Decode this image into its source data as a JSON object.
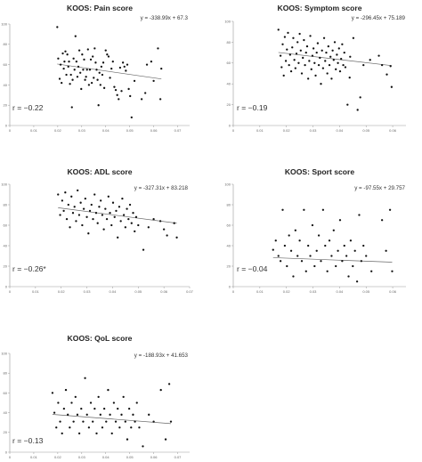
{
  "chart_data": [
    {
      "type": "scatter",
      "title": "KOOS: Pain score",
      "equation": "y = -338.99x + 67.3",
      "r_text": "r = −0.22",
      "slope": -338.99,
      "intercept": 67.3,
      "xlim": [
        0,
        0.075
      ],
      "ylim": [
        0,
        100
      ],
      "x_ticks": [
        "0",
        "0.01",
        "0.02",
        "0.03",
        "0.04",
        "0.05",
        "0.06",
        "0.07"
      ],
      "y_ticks": [
        "0",
        "20",
        "40",
        "60",
        "80",
        "100"
      ],
      "points": [
        [
          0.0198,
          97
        ],
        [
          0.0202,
          66
        ],
        [
          0.0208,
          46
        ],
        [
          0.0212,
          60
        ],
        [
          0.0216,
          42
        ],
        [
          0.0221,
          71
        ],
        [
          0.0225,
          56
        ],
        [
          0.0228,
          63
        ],
        [
          0.0232,
          73
        ],
        [
          0.0236,
          50
        ],
        [
          0.024,
          70
        ],
        [
          0.0244,
          58
        ],
        [
          0.0247,
          63
        ],
        [
          0.0251,
          41
        ],
        [
          0.0255,
          50
        ],
        [
          0.0259,
          18
        ],
        [
          0.0262,
          45
        ],
        [
          0.0266,
          66
        ],
        [
          0.027,
          55
        ],
        [
          0.0274,
          88
        ],
        [
          0.0278,
          63
        ],
        [
          0.0282,
          48
        ],
        [
          0.0286,
          58
        ],
        [
          0.029,
          74
        ],
        [
          0.0294,
          52
        ],
        [
          0.0298,
          36
        ],
        [
          0.0302,
          70
        ],
        [
          0.0306,
          55
        ],
        [
          0.031,
          65
        ],
        [
          0.0314,
          45
        ],
        [
          0.0318,
          48
        ],
        [
          0.0322,
          55
        ],
        [
          0.0326,
          75
        ],
        [
          0.033,
          40
        ],
        [
          0.0334,
          55
        ],
        [
          0.0338,
          65
        ],
        [
          0.0342,
          42
        ],
        [
          0.0346,
          68
        ],
        [
          0.035,
          47
        ],
        [
          0.0354,
          76
        ],
        [
          0.0358,
          62
        ],
        [
          0.0362,
          55
        ],
        [
          0.0366,
          45
        ],
        [
          0.037,
          20
        ],
        [
          0.0374,
          52
        ],
        [
          0.0378,
          40
        ],
        [
          0.0382,
          58
        ],
        [
          0.0386,
          50
        ],
        [
          0.039,
          62
        ],
        [
          0.0394,
          37
        ],
        [
          0.04,
          74
        ],
        [
          0.0406,
          70
        ],
        [
          0.0412,
          68
        ],
        [
          0.0418,
          47
        ],
        [
          0.0424,
          56
        ],
        [
          0.043,
          63
        ],
        [
          0.0436,
          38
        ],
        [
          0.0442,
          35
        ],
        [
          0.0448,
          30
        ],
        [
          0.0454,
          26
        ],
        [
          0.046,
          57
        ],
        [
          0.0466,
          34
        ],
        [
          0.0472,
          62
        ],
        [
          0.0478,
          58
        ],
        [
          0.0484,
          54
        ],
        [
          0.049,
          60
        ],
        [
          0.0496,
          36
        ],
        [
          0.0502,
          29
        ],
        [
          0.0508,
          8
        ],
        [
          0.052,
          44
        ],
        [
          0.055,
          26
        ],
        [
          0.0565,
          32
        ],
        [
          0.0572,
          60
        ],
        [
          0.059,
          63
        ],
        [
          0.06,
          44
        ],
        [
          0.0618,
          76
        ],
        [
          0.0628,
          26
        ],
        [
          0.0632,
          56
        ]
      ]
    },
    {
      "type": "scatter",
      "title": "KOOS: Symptom score",
      "equation": "y = -296.45x + 75.189",
      "r_text": "r = −0.19",
      "slope": -296.45,
      "intercept": 75.189,
      "xlim": [
        0,
        0.065
      ],
      "ylim": [
        0,
        100
      ],
      "x_ticks": [
        "0",
        "0.01",
        "0.02",
        "0.03",
        "0.04",
        "0.05",
        "0.06"
      ],
      "y_ticks": [
        "0",
        "20",
        "40",
        "60",
        "80",
        "100"
      ],
      "points": [
        [
          0.017,
          92
        ],
        [
          0.0178,
          67
        ],
        [
          0.0182,
          56
        ],
        [
          0.0186,
          78
        ],
        [
          0.019,
          48
        ],
        [
          0.0194,
          85
        ],
        [
          0.0198,
          62
        ],
        [
          0.0202,
          73
        ],
        [
          0.0206,
          89
        ],
        [
          0.021,
          58
        ],
        [
          0.0214,
          68
        ],
        [
          0.0218,
          52
        ],
        [
          0.0222,
          75
        ],
        [
          0.0226,
          84
        ],
        [
          0.023,
          63
        ],
        [
          0.0234,
          55
        ],
        [
          0.0238,
          69
        ],
        [
          0.0242,
          80
        ],
        [
          0.0246,
          60
        ],
        [
          0.025,
          88
        ],
        [
          0.0254,
          72
        ],
        [
          0.0258,
          50
        ],
        [
          0.0262,
          65
        ],
        [
          0.0266,
          82
        ],
        [
          0.027,
          58
        ],
        [
          0.0274,
          70
        ],
        [
          0.0278,
          76
        ],
        [
          0.0282,
          45
        ],
        [
          0.0286,
          62
        ],
        [
          0.029,
          86
        ],
        [
          0.0294,
          54
        ],
        [
          0.0298,
          67
        ],
        [
          0.0302,
          74
        ],
        [
          0.0306,
          60
        ],
        [
          0.031,
          48
        ],
        [
          0.0314,
          70
        ],
        [
          0.0318,
          79
        ],
        [
          0.0322,
          58
        ],
        [
          0.0326,
          65
        ],
        [
          0.033,
          40
        ],
        [
          0.0334,
          72
        ],
        [
          0.0338,
          55
        ],
        [
          0.0342,
          84
        ],
        [
          0.0346,
          62
        ],
        [
          0.035,
          70
        ],
        [
          0.0354,
          50
        ],
        [
          0.0358,
          76
        ],
        [
          0.0362,
          58
        ],
        [
          0.0366,
          66
        ],
        [
          0.037,
          45
        ],
        [
          0.0374,
          72
        ],
        [
          0.0378,
          63
        ],
        [
          0.0382,
          80
        ],
        [
          0.0386,
          54
        ],
        [
          0.039,
          68
        ],
        [
          0.0394,
          60
        ],
        [
          0.0398,
          74
        ],
        [
          0.0402,
          52
        ],
        [
          0.0406,
          64
        ],
        [
          0.041,
          78
        ],
        [
          0.0414,
          58
        ],
        [
          0.0418,
          70
        ],
        [
          0.0422,
          56
        ],
        [
          0.043,
          20
        ],
        [
          0.0438,
          46
        ],
        [
          0.044,
          66
        ],
        [
          0.0452,
          84
        ],
        [
          0.0468,
          15
        ],
        [
          0.0478,
          27
        ],
        [
          0.049,
          58
        ],
        [
          0.0515,
          63
        ],
        [
          0.0548,
          67
        ],
        [
          0.056,
          58
        ],
        [
          0.0578,
          49
        ],
        [
          0.0592,
          57
        ],
        [
          0.0596,
          37
        ]
      ]
    },
    {
      "type": "scatter",
      "title": "KOOS: ADL score",
      "equation": "y = -327.31x + 83.218",
      "r_text": "r = −0.26*",
      "slope": -327.31,
      "intercept": 83.218,
      "xlim": [
        0,
        0.07
      ],
      "ylim": [
        0,
        100
      ],
      "x_ticks": [
        "0",
        "0.01",
        "0.02",
        "0.03",
        "0.04",
        "0.05",
        "0.06",
        "0.07"
      ],
      "y_ticks": [
        "0",
        "20",
        "40",
        "60",
        "80",
        "100"
      ],
      "points": [
        [
          0.0188,
          90
        ],
        [
          0.0196,
          70
        ],
        [
          0.0204,
          84
        ],
        [
          0.021,
          74
        ],
        [
          0.0216,
          92
        ],
        [
          0.0222,
          66
        ],
        [
          0.0228,
          80
        ],
        [
          0.0234,
          58
        ],
        [
          0.024,
          88
        ],
        [
          0.0246,
          72
        ],
        [
          0.0252,
          78
        ],
        [
          0.0258,
          64
        ],
        [
          0.0264,
          94
        ],
        [
          0.027,
          70
        ],
        [
          0.0276,
          82
        ],
        [
          0.0282,
          60
        ],
        [
          0.0288,
          76
        ],
        [
          0.0294,
          86
        ],
        [
          0.03,
          68
        ],
        [
          0.0306,
          52
        ],
        [
          0.0312,
          74
        ],
        [
          0.0318,
          80
        ],
        [
          0.0324,
          66
        ],
        [
          0.033,
          90
        ],
        [
          0.0336,
          72
        ],
        [
          0.0342,
          62
        ],
        [
          0.0348,
          78
        ],
        [
          0.0354,
          84
        ],
        [
          0.036,
          70
        ],
        [
          0.0366,
          56
        ],
        [
          0.0372,
          76
        ],
        [
          0.0378,
          66
        ],
        [
          0.0384,
          88
        ],
        [
          0.039,
          72
        ],
        [
          0.0396,
          60
        ],
        [
          0.0402,
          82
        ],
        [
          0.0408,
          68
        ],
        [
          0.0414,
          74
        ],
        [
          0.042,
          48
        ],
        [
          0.0426,
          78
        ],
        [
          0.0432,
          64
        ],
        [
          0.0438,
          86
        ],
        [
          0.0444,
          70
        ],
        [
          0.045,
          58
        ],
        [
          0.0456,
          76
        ],
        [
          0.0462,
          66
        ],
        [
          0.0468,
          80
        ],
        [
          0.0474,
          62
        ],
        [
          0.048,
          72
        ],
        [
          0.0486,
          54
        ],
        [
          0.0492,
          68
        ],
        [
          0.05,
          60
        ],
        [
          0.052,
          36
        ],
        [
          0.054,
          58
        ],
        [
          0.056,
          66
        ],
        [
          0.0586,
          64
        ],
        [
          0.06,
          56
        ],
        [
          0.0612,
          50
        ],
        [
          0.064,
          62
        ],
        [
          0.065,
          48
        ]
      ]
    },
    {
      "type": "scatter",
      "title": "KOOS: Sport score",
      "equation": "y = -97.55x + 29.757",
      "r_text": "r = −0.04",
      "slope": -97.55,
      "intercept": 29.757,
      "xlim": [
        0,
        0.065
      ],
      "ylim": [
        0,
        100
      ],
      "x_ticks": [
        "0",
        "0.01",
        "0.02",
        "0.03",
        "0.04",
        "0.05",
        "0.06"
      ],
      "y_ticks": [
        "0",
        "20",
        "40",
        "60",
        "80",
        "100"
      ],
      "points": [
        [
          0.015,
          36
        ],
        [
          0.016,
          45
        ],
        [
          0.017,
          30
        ],
        [
          0.0178,
          25
        ],
        [
          0.0186,
          75
        ],
        [
          0.0194,
          40
        ],
        [
          0.0202,
          20
        ],
        [
          0.021,
          50
        ],
        [
          0.0218,
          35
        ],
        [
          0.0226,
          10
        ],
        [
          0.0234,
          55
        ],
        [
          0.0242,
          30
        ],
        [
          0.025,
          45
        ],
        [
          0.0258,
          25
        ],
        [
          0.0266,
          75
        ],
        [
          0.0274,
          15
        ],
        [
          0.0282,
          40
        ],
        [
          0.029,
          30
        ],
        [
          0.0298,
          60
        ],
        [
          0.0306,
          20
        ],
        [
          0.0314,
          35
        ],
        [
          0.0322,
          50
        ],
        [
          0.033,
          25
        ],
        [
          0.0338,
          75
        ],
        [
          0.0346,
          40
        ],
        [
          0.0354,
          15
        ],
        [
          0.0362,
          45
        ],
        [
          0.037,
          30
        ],
        [
          0.0378,
          55
        ],
        [
          0.0386,
          20
        ],
        [
          0.0394,
          35
        ],
        [
          0.0402,
          65
        ],
        [
          0.041,
          25
        ],
        [
          0.0418,
          40
        ],
        [
          0.0426,
          30
        ],
        [
          0.0434,
          10
        ],
        [
          0.0442,
          45
        ],
        [
          0.045,
          20
        ],
        [
          0.0458,
          35
        ],
        [
          0.0466,
          5
        ],
        [
          0.0474,
          70
        ],
        [
          0.0482,
          25
        ],
        [
          0.049,
          40
        ],
        [
          0.05,
          30
        ],
        [
          0.052,
          15
        ],
        [
          0.056,
          65
        ],
        [
          0.0575,
          35
        ],
        [
          0.059,
          75
        ],
        [
          0.0598,
          15
        ]
      ]
    },
    {
      "type": "scatter",
      "title": "KOOS: QoL score",
      "equation": "y = -188.93x + 41.653",
      "r_text": "r = −0.13",
      "slope": -188.93,
      "intercept": 41.653,
      "xlim": [
        0,
        0.075
      ],
      "ylim": [
        0,
        100
      ],
      "x_ticks": [
        "0",
        "0.01",
        "0.02",
        "0.03",
        "0.04",
        "0.05",
        "0.06",
        "0.07"
      ],
      "y_ticks": [
        "0",
        "20",
        "40",
        "60",
        "80",
        "100"
      ],
      "points": [
        [
          0.0178,
          60
        ],
        [
          0.0186,
          40
        ],
        [
          0.0194,
          25
        ],
        [
          0.0202,
          50
        ],
        [
          0.021,
          31
        ],
        [
          0.0218,
          19
        ],
        [
          0.0226,
          44
        ],
        [
          0.0234,
          63
        ],
        [
          0.0242,
          38
        ],
        [
          0.025,
          25
        ],
        [
          0.0258,
          50
        ],
        [
          0.0266,
          31
        ],
        [
          0.0274,
          56
        ],
        [
          0.0282,
          38
        ],
        [
          0.029,
          19
        ],
        [
          0.0298,
          44
        ],
        [
          0.0306,
          31
        ],
        [
          0.0314,
          75
        ],
        [
          0.0322,
          38
        ],
        [
          0.033,
          25
        ],
        [
          0.0338,
          50
        ],
        [
          0.0346,
          31
        ],
        [
          0.0354,
          44
        ],
        [
          0.0362,
          19
        ],
        [
          0.037,
          56
        ],
        [
          0.0378,
          38
        ],
        [
          0.0386,
          25
        ],
        [
          0.0394,
          44
        ],
        [
          0.0402,
          31
        ],
        [
          0.041,
          63
        ],
        [
          0.0418,
          38
        ],
        [
          0.0426,
          19
        ],
        [
          0.0434,
          50
        ],
        [
          0.0442,
          31
        ],
        [
          0.045,
          44
        ],
        [
          0.0458,
          25
        ],
        [
          0.0466,
          38
        ],
        [
          0.0474,
          56
        ],
        [
          0.0482,
          31
        ],
        [
          0.049,
          13
        ],
        [
          0.0498,
          44
        ],
        [
          0.0506,
          25
        ],
        [
          0.0514,
          38
        ],
        [
          0.0522,
          31
        ],
        [
          0.053,
          50
        ],
        [
          0.054,
          25
        ],
        [
          0.0555,
          6
        ],
        [
          0.058,
          38
        ],
        [
          0.06,
          31
        ],
        [
          0.063,
          63
        ],
        [
          0.065,
          13
        ],
        [
          0.0665,
          69
        ],
        [
          0.0672,
          31
        ]
      ]
    }
  ]
}
